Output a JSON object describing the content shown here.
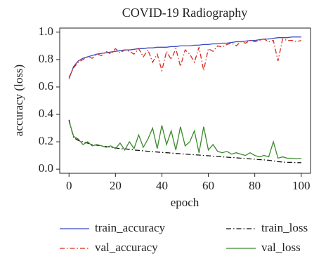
{
  "chart_data": {
    "type": "line",
    "title": "COVID-19 Radiography",
    "xlabel": "epoch",
    "ylabel": "accuracy (loss)",
    "x": [
      0,
      2,
      4,
      6,
      8,
      10,
      12,
      14,
      16,
      18,
      20,
      22,
      24,
      26,
      28,
      30,
      32,
      34,
      36,
      38,
      40,
      42,
      44,
      46,
      48,
      50,
      52,
      54,
      56,
      58,
      60,
      62,
      64,
      66,
      68,
      70,
      72,
      74,
      76,
      78,
      80,
      82,
      84,
      86,
      88,
      90,
      92,
      94,
      96,
      98,
      100
    ],
    "xlim": [
      -4,
      104
    ],
    "xticks": [
      0,
      20,
      40,
      60,
      80,
      100
    ],
    "ylim": [
      -0.03,
      1.03
    ],
    "yticks": [
      {
        "value": 0,
        "label": "0.0"
      },
      0.2,
      0.4,
      0.6,
      0.8,
      {
        "value": 1,
        "label": "1.0"
      }
    ],
    "series": [
      {
        "name": "train_accuracy",
        "color": "#3b4cc0",
        "linestyle": "solid",
        "values": [
          0.66,
          0.75,
          0.79,
          0.81,
          0.82,
          0.83,
          0.84,
          0.845,
          0.85,
          0.855,
          0.86,
          0.865,
          0.87,
          0.87,
          0.875,
          0.88,
          0.88,
          0.885,
          0.885,
          0.89,
          0.89,
          0.89,
          0.895,
          0.895,
          0.9,
          0.9,
          0.9,
          0.905,
          0.905,
          0.91,
          0.91,
          0.915,
          0.915,
          0.92,
          0.92,
          0.925,
          0.93,
          0.93,
          0.935,
          0.94,
          0.94,
          0.945,
          0.95,
          0.95,
          0.955,
          0.96,
          0.96,
          0.96,
          0.965,
          0.965,
          0.965
        ]
      },
      {
        "name": "val_accuracy",
        "color": "#d62a1a",
        "linestyle": "dashdot",
        "values": [
          0.67,
          0.74,
          0.78,
          0.8,
          0.82,
          0.81,
          0.84,
          0.83,
          0.86,
          0.84,
          0.88,
          0.85,
          0.87,
          0.86,
          0.84,
          0.88,
          0.82,
          0.87,
          0.78,
          0.84,
          0.72,
          0.86,
          0.8,
          0.88,
          0.75,
          0.87,
          0.84,
          0.78,
          0.89,
          0.72,
          0.88,
          0.86,
          0.9,
          0.89,
          0.91,
          0.92,
          0.9,
          0.93,
          0.92,
          0.94,
          0.93,
          0.94,
          0.95,
          0.93,
          0.94,
          0.79,
          0.95,
          0.94,
          0.94,
          0.93,
          0.94
        ]
      },
      {
        "name": "train_loss",
        "color": "#111111",
        "linestyle": "dashdot",
        "values": [
          0.36,
          0.23,
          0.21,
          0.2,
          0.19,
          0.18,
          0.175,
          0.17,
          0.165,
          0.16,
          0.155,
          0.15,
          0.148,
          0.145,
          0.14,
          0.137,
          0.134,
          0.131,
          0.128,
          0.125,
          0.122,
          0.12,
          0.118,
          0.115,
          0.113,
          0.11,
          0.108,
          0.105,
          0.103,
          0.1,
          0.098,
          0.095,
          0.093,
          0.09,
          0.088,
          0.085,
          0.083,
          0.08,
          0.078,
          0.075,
          0.073,
          0.07,
          0.068,
          0.065,
          0.06,
          0.055,
          0.052,
          0.05,
          0.05,
          0.048,
          0.048
        ]
      },
      {
        "name": "val_loss",
        "color": "#3a8a2a",
        "linestyle": "solid",
        "values": [
          0.35,
          0.24,
          0.22,
          0.18,
          0.2,
          0.17,
          0.18,
          0.17,
          0.16,
          0.17,
          0.15,
          0.19,
          0.14,
          0.2,
          0.15,
          0.25,
          0.16,
          0.22,
          0.3,
          0.15,
          0.32,
          0.18,
          0.28,
          0.14,
          0.31,
          0.17,
          0.2,
          0.28,
          0.12,
          0.31,
          0.14,
          0.18,
          0.13,
          0.12,
          0.13,
          0.11,
          0.12,
          0.11,
          0.1,
          0.12,
          0.1,
          0.09,
          0.1,
          0.09,
          0.2,
          0.08,
          0.09,
          0.08,
          0.08,
          0.075,
          0.08
        ]
      }
    ]
  }
}
